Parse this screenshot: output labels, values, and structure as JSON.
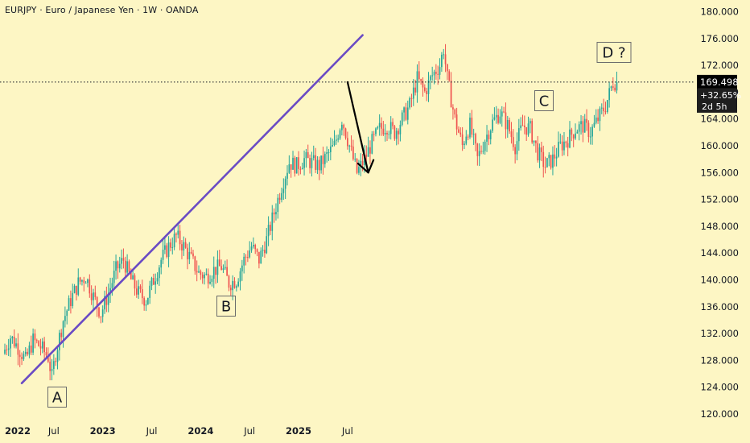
{
  "header": {
    "title": "EURJPY · Euro / Japanese Yen · 1W · OANDA"
  },
  "colors": {
    "background": "#fdf6c4",
    "up": "#26a69a",
    "down": "#ef5350",
    "trendline": "#6a4bc4",
    "arrow": "#000000",
    "price_box": "#000000"
  },
  "price_label": {
    "price": "169.498",
    "change": "+32.65%",
    "countdown": "2d 5h"
  },
  "chart_data": {
    "type": "candlestick",
    "symbol": "EURJPY",
    "timeframe": "1W",
    "source": "OANDA",
    "y_axis_ticks": [
      "180.000",
      "176.000",
      "172.000",
      "168.000",
      "164.000",
      "160.000",
      "156.000",
      "152.000",
      "148.000",
      "144.000",
      "140.000",
      "136.000",
      "132.000",
      "128.000",
      "124.000",
      "120.000"
    ],
    "ylim": [
      119.5,
      181.5
    ],
    "x_axis_ticks": [
      {
        "label": "2022",
        "bold": true
      },
      {
        "label": "Jul",
        "bold": false
      },
      {
        "label": "2023",
        "bold": true
      },
      {
        "label": "Jul",
        "bold": false
      },
      {
        "label": "2024",
        "bold": true
      },
      {
        "label": "Jul",
        "bold": false
      },
      {
        "label": "2025",
        "bold": true
      },
      {
        "label": "Jul",
        "bold": false
      }
    ],
    "last_price": 169.498,
    "annotations": [
      {
        "label": "A",
        "price": 124.5
      },
      {
        "label": "B",
        "price": 138.0
      },
      {
        "label": "C",
        "price": 166.5
      },
      {
        "label": "D ?",
        "price": 177.5
      }
    ],
    "trendline": {
      "start": {
        "date": "2022-03-07",
        "price": 124.6
      },
      "end": {
        "date": "2025-08-25",
        "price": 176.5
      }
    },
    "projection_arrow": {
      "from": {
        "date": "2025-06-30",
        "price": 169.5
      },
      "to": {
        "date": "2025-09-15",
        "price": 156.0
      }
    },
    "path_points": [
      [
        0,
        129.0
      ],
      [
        4,
        131.5
      ],
      [
        8,
        130.0
      ],
      [
        12,
        128.0
      ],
      [
        16,
        131.0
      ],
      [
        20,
        130.0
      ],
      [
        24,
        128.5
      ],
      [
        26,
        125.5
      ],
      [
        28,
        129.0
      ],
      [
        32,
        134.0
      ],
      [
        36,
        137.0
      ],
      [
        40,
        139.5
      ],
      [
        44,
        140.5
      ],
      [
        48,
        137.5
      ],
      [
        52,
        135.0
      ],
      [
        56,
        138.0
      ],
      [
        60,
        141.5
      ],
      [
        64,
        143.0
      ],
      [
        68,
        140.0
      ],
      [
        72,
        138.0
      ],
      [
        76,
        137.0
      ],
      [
        80,
        140.0
      ],
      [
        84,
        143.0
      ],
      [
        88,
        145.0
      ],
      [
        92,
        146.5
      ],
      [
        96,
        145.0
      ],
      [
        100,
        143.0
      ],
      [
        104,
        141.0
      ],
      [
        108,
        140.5
      ],
      [
        112,
        141.5
      ],
      [
        116,
        142.0
      ],
      [
        120,
        139.5
      ],
      [
        124,
        140.0
      ],
      [
        128,
        143.0
      ],
      [
        132,
        145.0
      ],
      [
        136,
        143.0
      ],
      [
        140,
        146.0
      ],
      [
        144,
        150.0
      ],
      [
        148,
        154.0
      ],
      [
        152,
        157.5
      ],
      [
        156,
        157.0
      ],
      [
        160,
        158.0
      ],
      [
        164,
        157.5
      ],
      [
        168,
        157.0
      ],
      [
        172,
        158.5
      ],
      [
        176,
        160.0
      ],
      [
        180,
        164.0
      ],
      [
        184,
        160.0
      ],
      [
        188,
        156.0
      ],
      [
        192,
        158.0
      ],
      [
        196,
        160.5
      ],
      [
        200,
        162.5
      ],
      [
        204,
        163.0
      ],
      [
        208,
        162.0
      ],
      [
        212,
        164.0
      ],
      [
        216,
        166.0
      ],
      [
        220,
        170.0
      ],
      [
        224,
        168.0
      ],
      [
        228,
        170.5
      ],
      [
        232,
        172.0
      ],
      [
        234,
        174.5
      ],
      [
        236,
        170.0
      ],
      [
        240,
        164.0
      ],
      [
        244,
        160.0
      ],
      [
        246,
        162.0
      ],
      [
        248,
        163.0
      ],
      [
        252,
        158.0
      ],
      [
        256,
        161.0
      ],
      [
        260,
        163.5
      ],
      [
        264,
        165.0
      ],
      [
        268,
        163.0
      ],
      [
        272,
        160.0
      ],
      [
        276,
        163.0
      ],
      [
        280,
        162.5
      ],
      [
        284,
        159.0
      ],
      [
        288,
        157.0
      ],
      [
        292,
        158.0
      ],
      [
        296,
        160.0
      ],
      [
        300,
        161.0
      ],
      [
        304,
        162.5
      ],
      [
        308,
        163.0
      ],
      [
        312,
        162.0
      ],
      [
        316,
        164.0
      ],
      [
        320,
        166.0
      ],
      [
        324,
        169.5
      ],
      [
        325,
        169.5
      ]
    ]
  }
}
